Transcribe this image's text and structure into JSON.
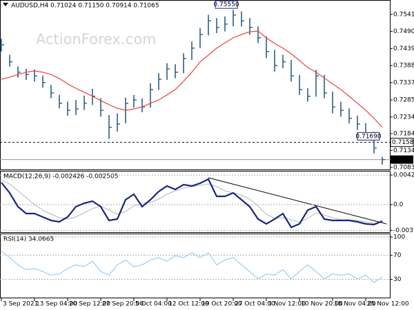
{
  "chart_data": [
    {
      "type": "ohlc",
      "title": "AUDUSD,H4 0.71024 0.71150 0.70914 0.71065",
      "watermark": "ActionForex.com",
      "color": "#2f5e7e",
      "high": [
        0.7468,
        0.742,
        0.7385,
        0.7378,
        0.7376,
        0.7358,
        0.733,
        0.73,
        0.728,
        0.7285,
        0.7298,
        0.7318,
        0.729,
        0.724,
        0.7245,
        0.7292,
        0.73,
        0.729,
        0.7335,
        0.7365,
        0.7395,
        0.7392,
        0.7425,
        0.746,
        0.75,
        0.754,
        0.753,
        0.7535,
        0.7555,
        0.755,
        0.753,
        0.7505,
        0.7475,
        0.7435,
        0.742,
        0.7405,
        0.736,
        0.732,
        0.7375,
        0.736,
        0.731,
        0.728,
        0.726,
        0.7238,
        0.7215,
        0.719,
        0.7115
      ],
      "low": [
        0.743,
        0.7385,
        0.7352,
        0.7345,
        0.734,
        0.7322,
        0.729,
        0.726,
        0.7238,
        0.724,
        0.7255,
        0.727,
        0.7235,
        0.7169,
        0.719,
        0.7215,
        0.7262,
        0.7248,
        0.7262,
        0.7315,
        0.7345,
        0.735,
        0.7365,
        0.7405,
        0.744,
        0.7478,
        0.7485,
        0.749,
        0.7505,
        0.7505,
        0.748,
        0.7455,
        0.741,
        0.737,
        0.738,
        0.734,
        0.73,
        0.728,
        0.7295,
        0.729,
        0.7245,
        0.7235,
        0.7215,
        0.7195,
        0.7165,
        0.7125,
        0.70914
      ],
      "close": [
        0.745,
        0.7399,
        0.7368,
        0.7361,
        0.7357,
        0.7337,
        0.7306,
        0.7275,
        0.7254,
        0.7258,
        0.7275,
        0.7296,
        0.7254,
        0.7203,
        0.7213,
        0.7275,
        0.7285,
        0.7264,
        0.7316,
        0.7347,
        0.7378,
        0.7368,
        0.7409,
        0.744,
        0.7481,
        0.7522,
        0.7502,
        0.7512,
        0.7539,
        0.7522,
        0.7502,
        0.7471,
        0.743,
        0.7388,
        0.7399,
        0.7357,
        0.7316,
        0.7296,
        0.7357,
        0.7306,
        0.7264,
        0.7254,
        0.723,
        0.7213,
        0.7182,
        0.7141,
        0.71065
      ],
      "ma": {
        "color": "#e8423b",
        "values": [
          0.7347,
          0.7353,
          0.7361,
          0.7368,
          0.7372,
          0.7368,
          0.7361,
          0.7349,
          0.7333,
          0.732,
          0.7308,
          0.7296,
          0.7283,
          0.7271,
          0.726,
          0.7254,
          0.7258,
          0.7264,
          0.7275,
          0.7285,
          0.73,
          0.7316,
          0.7341,
          0.7368,
          0.7399,
          0.7419,
          0.744,
          0.7456,
          0.7471,
          0.7481,
          0.7489,
          0.7491,
          0.7471,
          0.7454,
          0.744,
          0.7423,
          0.7403,
          0.7382,
          0.7368,
          0.7351,
          0.7333,
          0.7316,
          0.7296,
          0.7275,
          0.7254,
          0.723,
          0.7203
        ]
      },
      "high_label": {
        "value": 0.7555,
        "label": "0.75550"
      },
      "low_label": {
        "value": 0.7169,
        "label": "0.71690"
      },
      "level": {
        "value": 0.7158,
        "label": "0.71580"
      },
      "current": {
        "value": 0.71065,
        "label": "0.71065"
      },
      "ylim": [
        0.7079,
        0.758
      ],
      "yticks": [
        {
          "value": 0.7541,
          "label": "0.75410"
        },
        {
          "value": 0.749,
          "label": "0.74900"
        },
        {
          "value": 0.7439,
          "label": "0.74390"
        },
        {
          "value": 0.7388,
          "label": "0.73880"
        },
        {
          "value": 0.7337,
          "label": "0.73370"
        },
        {
          "value": 0.7285,
          "label": "0.72850"
        },
        {
          "value": 0.7234,
          "label": "0.72340"
        },
        {
          "value": 0.7184,
          "label": "0.71840"
        },
        {
          "value": 0.7134,
          "label": "0.71340"
        },
        {
          "value": 0.7083,
          "label": "0.70830"
        }
      ]
    },
    {
      "type": "macd",
      "title": "MACD(12,26,9) -0.002426 -0.002505",
      "series": [
        {
          "color": "#1a237e",
          "values": [
            0.0032,
            0.0017,
            -0.0003,
            -0.0013,
            -0.0013,
            -0.0018,
            -0.0023,
            -0.0025,
            -0.0018,
            -0.0003,
            0.0002,
            0.0005,
            -0.0003,
            -0.0023,
            -0.0021,
            0.0007,
            0.0015,
            -0.0003,
            0.0007,
            0.0019,
            0.0027,
            0.0022,
            0.0029,
            0.0027,
            0.0031,
            0.0037,
            0.0012,
            0.0012,
            0.0017,
            0.0007,
            -0.0003,
            -0.0021,
            -0.0028,
            -0.0021,
            -0.0013,
            -0.0033,
            -0.0028,
            -0.0008,
            -0.0003,
            -0.0021,
            -0.0023,
            -0.0023,
            -0.0023,
            -0.0025,
            -0.0028,
            -0.0029,
            -0.0024
          ]
        },
        {
          "color": "#b5b5b5",
          "values": [
            0.0035,
            0.003,
            0.002,
            0.001,
            0,
            -0.0008,
            -0.0014,
            -0.0019,
            -0.0021,
            -0.0018,
            -0.0012,
            -0.0006,
            -0.0002,
            -0.0008,
            -0.0014,
            -0.001,
            -0.0002,
            0.0002,
            0.0003,
            0.0008,
            0.0015,
            0.002,
            0.0024,
            0.0026,
            0.0028,
            0.003,
            0.0026,
            0.002,
            0.0017,
            0.0014,
            0.0008,
            -0.0002,
            -0.0014,
            -0.002,
            -0.0019,
            -0.0022,
            -0.0026,
            -0.002,
            -0.0012,
            -0.0015,
            -0.0019,
            -0.0022,
            -0.0022,
            -0.0023,
            -0.0025,
            -0.0027,
            -0.0025
          ]
        }
      ],
      "ylim": [
        -0.004,
        0.0048
      ],
      "yticks": [
        0.004287,
        {
          "value": 0,
          "label": "0.0"
        },
        -0.003726
      ]
    },
    {
      "type": "rsi",
      "title": "RSI(14) 34.0665",
      "color": "#87c4f0",
      "values": [
        77,
        66,
        54,
        46,
        48,
        43,
        37,
        39,
        48,
        54,
        51,
        60,
        43,
        37,
        54,
        62,
        51,
        54,
        62,
        66,
        60,
        69,
        66,
        74,
        66,
        74,
        54,
        62,
        66,
        54,
        43,
        31,
        39,
        37,
        46,
        31,
        43,
        54,
        43,
        31,
        39,
        37,
        39,
        31,
        37,
        25,
        34
      ],
      "categories": [
        "3 Sep 2021",
        null,
        null,
        null,
        "13 Sep 04:00",
        null,
        null,
        null,
        "20 Sep 12:00",
        null,
        null,
        null,
        "27 Sep 20:00",
        null,
        null,
        null,
        "5 Oct 04:00",
        null,
        null,
        null,
        "12 Oct 12:00",
        null,
        null,
        null,
        "19 Oct 20:00",
        null,
        null,
        null,
        "27 Oct 04:00",
        null,
        null,
        null,
        "3 Nov 12:00",
        null,
        null,
        null,
        "10 Nov 20:00",
        null,
        null,
        null,
        "18 Nov 04:00",
        null,
        null,
        null,
        "25 Nov 12:00",
        null,
        null
      ],
      "ylim": [
        0,
        100
      ],
      "yticks": [
        100,
        70,
        30
      ]
    }
  ]
}
